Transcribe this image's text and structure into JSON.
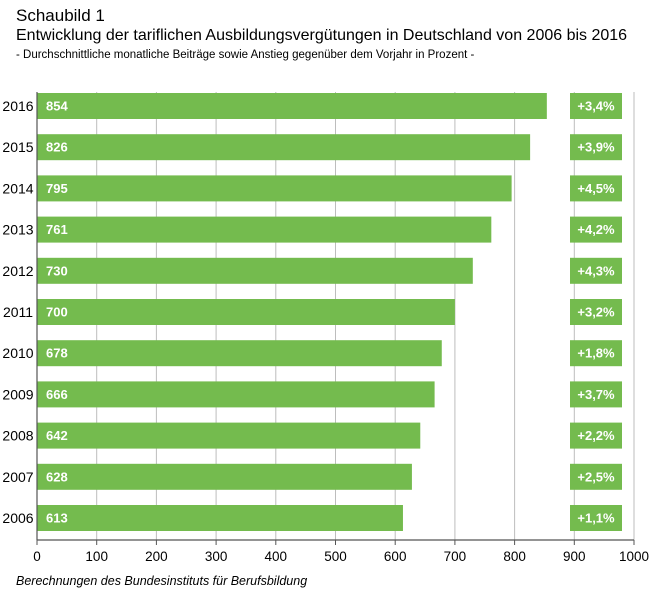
{
  "header": {
    "title": "Schaubild 1",
    "subtitle": "Entwicklung der tariflichen Ausbildungsvergütungen in Deutschland von 2006 bis 2016",
    "description": "- Durchschnittliche monatliche Beiträge sowie Anstieg gegenüber dem Vorjahr in Prozent -"
  },
  "source": "Berechnungen des Bundesinstituts für Berufsbildung",
  "colors": {
    "bar": "#74bb4e",
    "grid": "#bdbdbd",
    "axis": "#555555",
    "label": "#ffffff"
  },
  "chart_data": {
    "type": "bar",
    "orientation": "horizontal",
    "categories": [
      "2016",
      "2015",
      "2014",
      "2013",
      "2012",
      "2011",
      "2010",
      "2009",
      "2008",
      "2007",
      "2006"
    ],
    "values": [
      854,
      826,
      795,
      761,
      730,
      700,
      678,
      666,
      642,
      628,
      613
    ],
    "value_labels": [
      "854",
      "826",
      "795",
      "761",
      "730",
      "700",
      "678",
      "666",
      "642",
      "628",
      "613"
    ],
    "change_labels": [
      "+3,4%",
      "+3,9%",
      "+4,5%",
      "+4,2%",
      "+4,3%",
      "+3,2%",
      "+1,8%",
      "+3,7%",
      "+2,2%",
      "+2,5%",
      "+1,1%"
    ],
    "xlim": [
      0,
      1000
    ],
    "xticks": [
      0,
      100,
      200,
      300,
      400,
      500,
      600,
      700,
      800,
      900,
      1000
    ],
    "grid": "vertical",
    "xlabel": "",
    "ylabel": ""
  }
}
